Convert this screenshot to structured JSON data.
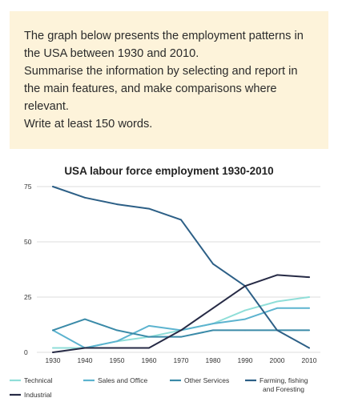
{
  "task": {
    "line1": "The graph below presents the employment patterns in the USA between 1930 and 2010.",
    "line2": "Summarise the information by selecting and report in the main features, and make comparisons where relevant.",
    "line3": "Write at least 150 words."
  },
  "chart_data": {
    "type": "line",
    "title": "USA labour force employment 1930-2010",
    "xlabel": "",
    "ylabel": "",
    "x": [
      1930,
      1940,
      1950,
      1960,
      1970,
      1980,
      1990,
      2000,
      2010
    ],
    "x_ticks": [
      "1930",
      "1940",
      "1950",
      "1960",
      "1970",
      "1980",
      "1990",
      "2000",
      "2010"
    ],
    "y_ticks": [
      "0",
      "25",
      "50",
      "75"
    ],
    "y_tick_values": [
      0,
      25,
      50,
      75
    ],
    "ylim": [
      0,
      75
    ],
    "grid": "horizontal",
    "legend_position": "bottom",
    "series": [
      {
        "name": "Technical",
        "color": "#8fded8",
        "values": [
          2,
          2,
          5,
          7,
          10,
          13,
          19,
          23,
          25
        ]
      },
      {
        "name": "Sales and Office",
        "color": "#5cb3cf",
        "values": [
          10,
          2,
          5,
          12,
          10,
          13,
          15,
          20,
          20
        ]
      },
      {
        "name": "Other Services",
        "color": "#3a8aa8",
        "values": [
          10,
          15,
          10,
          7,
          7,
          10,
          10,
          10,
          10
        ]
      },
      {
        "name": "Farming, fishing and Foresting",
        "color": "#2c5f86",
        "values": [
          75,
          70,
          67,
          65,
          60,
          40,
          30,
          10,
          2
        ]
      },
      {
        "name": "Industrial",
        "color": "#262a45",
        "values": [
          0,
          2,
          2,
          2,
          10,
          20,
          30,
          35,
          34
        ]
      }
    ],
    "legend_labels": {
      "technical": "Technical",
      "sales": "Sales and Office",
      "other": "Other Services",
      "farming_line1": "Farming, fishing",
      "farming_line2": "and Foresting",
      "industrial": "Industrial"
    }
  }
}
